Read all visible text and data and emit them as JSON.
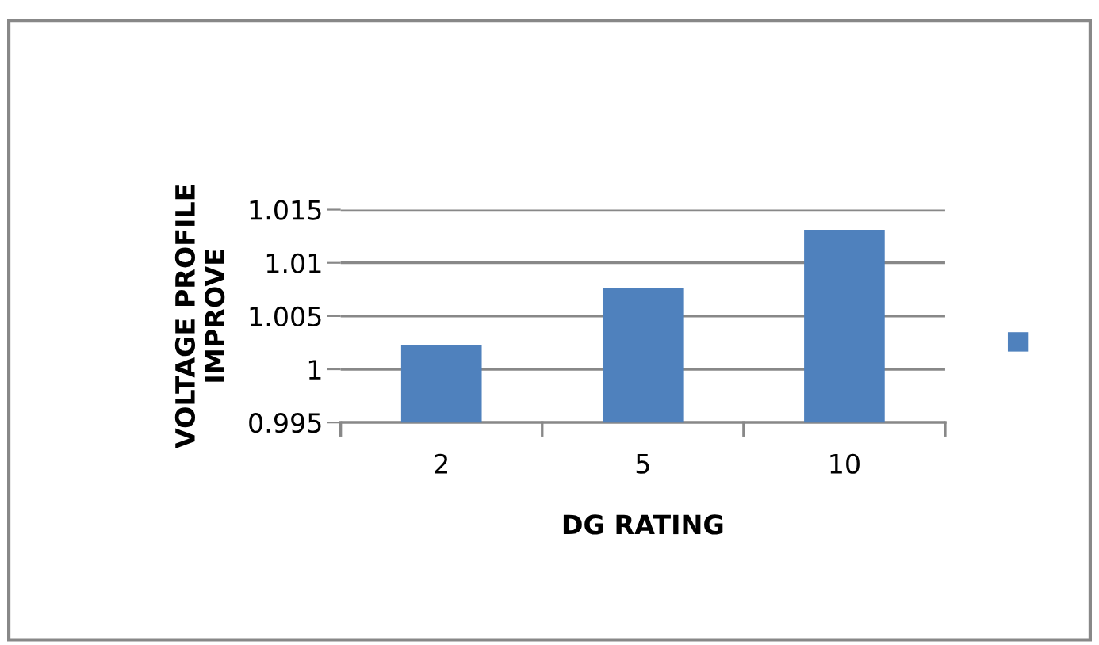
{
  "chart_data": {
    "type": "bar",
    "xlabel": "DG RATING",
    "ylabel": "VOLTAGE PROFILE\nIMPROVE",
    "categories": [
      "2",
      "5",
      "10"
    ],
    "values": [
      1.0023,
      1.0076,
      1.0131
    ],
    "color": "#4f81bd",
    "ylim": [
      0.995,
      1.015
    ],
    "yticks": [
      0.995,
      {
        "value": 1,
        "label": "1"
      },
      1.005,
      1.01,
      1.015
    ],
    "grid": "y"
  }
}
